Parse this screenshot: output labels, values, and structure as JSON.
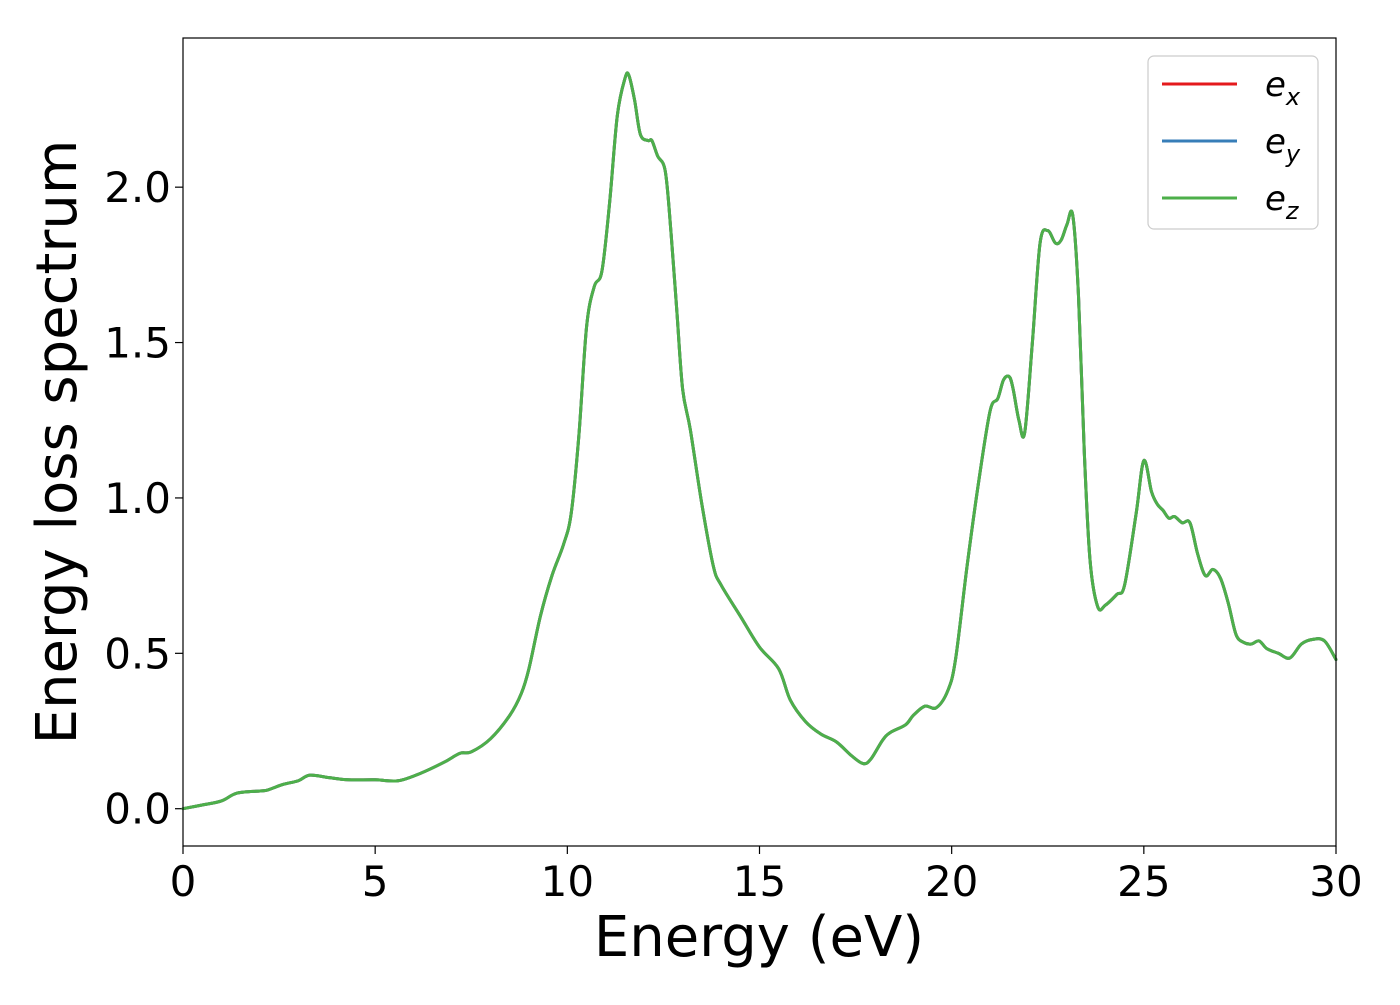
{
  "chart_data": {
    "type": "line",
    "title": "",
    "xlabel": "Energy (eV)",
    "ylabel": "Energy loss spectrum",
    "xlim": [
      0,
      30
    ],
    "ylim": [
      -0.12,
      2.48
    ],
    "xticks": [
      0,
      5,
      10,
      15,
      20,
      25,
      30
    ],
    "xtick_labels": [
      "0",
      "5",
      "10",
      "15",
      "20",
      "25",
      "30"
    ],
    "yticks": [
      0.0,
      0.5,
      1.0,
      1.5,
      2.0
    ],
    "ytick_labels": [
      "0.0",
      "0.5",
      "1.0",
      "1.5",
      "2.0"
    ],
    "grid": false,
    "legend_position": "top-right",
    "x": [
      0,
      0.5,
      1.0,
      1.4,
      2.0,
      2.2,
      2.6,
      3.0,
      3.3,
      3.8,
      4.3,
      5.0,
      5.6,
      6.2,
      6.8,
      7.2,
      7.5,
      8.0,
      8.5,
      8.8,
      9.0,
      9.3,
      9.6,
      9.9,
      10.1,
      10.3,
      10.5,
      10.7,
      10.9,
      11.1,
      11.3,
      11.5,
      11.6,
      11.75,
      11.9,
      12.1,
      12.2,
      12.35,
      12.55,
      12.7,
      12.85,
      13.0,
      13.2,
      13.5,
      13.8,
      14.0,
      14.5,
      15.0,
      15.5,
      15.8,
      16.2,
      16.6,
      17.0,
      17.4,
      17.7,
      17.9,
      18.2,
      18.4,
      18.8,
      19.0,
      19.3,
      19.6,
      19.9,
      20.1,
      20.4,
      20.7,
      21.0,
      21.2,
      21.35,
      21.5,
      21.6,
      21.75,
      21.9,
      22.1,
      22.3,
      22.5,
      22.7,
      22.85,
      23.0,
      23.15,
      23.3,
      23.45,
      23.6,
      23.8,
      24.0,
      24.3,
      24.5,
      24.8,
      25.0,
      25.2,
      25.35,
      25.5,
      25.65,
      25.8,
      26.0,
      26.2,
      26.4,
      26.6,
      26.8,
      27.0,
      27.2,
      27.4,
      27.6,
      27.8,
      28.0,
      28.2,
      28.5,
      28.8,
      29.1,
      29.4,
      29.7,
      30.0
    ],
    "series": [
      {
        "name": "e_x",
        "color": "#e41a1c",
        "values": [
          0.0,
          0.012,
          0.025,
          0.05,
          0.057,
          0.06,
          0.078,
          0.09,
          0.108,
          0.1,
          0.093,
          0.093,
          0.09,
          0.115,
          0.15,
          0.178,
          0.183,
          0.225,
          0.3,
          0.37,
          0.45,
          0.62,
          0.75,
          0.85,
          0.95,
          1.2,
          1.55,
          1.68,
          1.73,
          1.95,
          2.23,
          2.35,
          2.36,
          2.28,
          2.17,
          2.15,
          2.15,
          2.1,
          2.05,
          1.85,
          1.6,
          1.35,
          1.22,
          0.98,
          0.78,
          0.72,
          0.62,
          0.52,
          0.45,
          0.35,
          0.28,
          0.24,
          0.215,
          0.17,
          0.145,
          0.16,
          0.22,
          0.245,
          0.27,
          0.3,
          0.33,
          0.325,
          0.38,
          0.48,
          0.78,
          1.05,
          1.28,
          1.32,
          1.38,
          1.39,
          1.35,
          1.25,
          1.21,
          1.5,
          1.82,
          1.86,
          1.82,
          1.83,
          1.88,
          1.91,
          1.65,
          1.15,
          0.8,
          0.65,
          0.655,
          0.69,
          0.72,
          0.95,
          1.12,
          1.02,
          0.98,
          0.96,
          0.935,
          0.94,
          0.92,
          0.92,
          0.82,
          0.75,
          0.77,
          0.74,
          0.66,
          0.56,
          0.535,
          0.53,
          0.54,
          0.515,
          0.5,
          0.485,
          0.53,
          0.545,
          0.54,
          0.48
        ]
      },
      {
        "name": "e_y",
        "color": "#377eb8",
        "values": [
          0.0,
          0.012,
          0.025,
          0.05,
          0.057,
          0.06,
          0.078,
          0.09,
          0.108,
          0.1,
          0.093,
          0.093,
          0.09,
          0.115,
          0.15,
          0.178,
          0.183,
          0.225,
          0.3,
          0.37,
          0.45,
          0.62,
          0.75,
          0.85,
          0.95,
          1.2,
          1.55,
          1.68,
          1.73,
          1.95,
          2.23,
          2.35,
          2.36,
          2.28,
          2.17,
          2.15,
          2.15,
          2.1,
          2.05,
          1.85,
          1.6,
          1.35,
          1.22,
          0.98,
          0.78,
          0.72,
          0.62,
          0.52,
          0.45,
          0.35,
          0.28,
          0.24,
          0.215,
          0.17,
          0.145,
          0.16,
          0.22,
          0.245,
          0.27,
          0.3,
          0.33,
          0.325,
          0.38,
          0.48,
          0.78,
          1.05,
          1.28,
          1.32,
          1.38,
          1.39,
          1.35,
          1.25,
          1.21,
          1.5,
          1.82,
          1.86,
          1.82,
          1.83,
          1.88,
          1.91,
          1.65,
          1.15,
          0.8,
          0.65,
          0.655,
          0.69,
          0.72,
          0.95,
          1.12,
          1.02,
          0.98,
          0.96,
          0.935,
          0.94,
          0.92,
          0.92,
          0.82,
          0.75,
          0.77,
          0.74,
          0.66,
          0.56,
          0.535,
          0.53,
          0.54,
          0.515,
          0.5,
          0.485,
          0.53,
          0.545,
          0.54,
          0.48
        ]
      },
      {
        "name": "e_z",
        "color": "#4daf4a",
        "values": [
          0.0,
          0.012,
          0.025,
          0.05,
          0.057,
          0.06,
          0.078,
          0.09,
          0.108,
          0.1,
          0.093,
          0.093,
          0.09,
          0.115,
          0.15,
          0.178,
          0.183,
          0.225,
          0.3,
          0.37,
          0.45,
          0.62,
          0.75,
          0.85,
          0.95,
          1.2,
          1.55,
          1.68,
          1.73,
          1.95,
          2.23,
          2.35,
          2.36,
          2.28,
          2.17,
          2.15,
          2.15,
          2.1,
          2.05,
          1.85,
          1.6,
          1.35,
          1.22,
          0.98,
          0.78,
          0.72,
          0.62,
          0.52,
          0.45,
          0.35,
          0.28,
          0.24,
          0.215,
          0.17,
          0.145,
          0.16,
          0.22,
          0.245,
          0.27,
          0.3,
          0.33,
          0.325,
          0.38,
          0.48,
          0.78,
          1.05,
          1.28,
          1.32,
          1.38,
          1.39,
          1.35,
          1.25,
          1.21,
          1.5,
          1.82,
          1.86,
          1.82,
          1.83,
          1.88,
          1.91,
          1.65,
          1.15,
          0.8,
          0.65,
          0.655,
          0.69,
          0.72,
          0.95,
          1.12,
          1.02,
          0.98,
          0.96,
          0.935,
          0.94,
          0.92,
          0.92,
          0.82,
          0.75,
          0.77,
          0.74,
          0.66,
          0.56,
          0.535,
          0.53,
          0.54,
          0.515,
          0.5,
          0.485,
          0.53,
          0.545,
          0.54,
          0.48
        ]
      }
    ],
    "legend": [
      {
        "base": "e",
        "sub": "x",
        "color": "#e41a1c"
      },
      {
        "base": "e",
        "sub": "y",
        "color": "#377eb8"
      },
      {
        "base": "e",
        "sub": "z",
        "color": "#4daf4a"
      }
    ]
  }
}
